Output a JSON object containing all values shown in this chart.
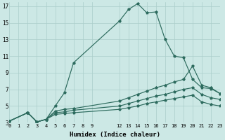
{
  "xlabel": "Humidex (Indice chaleur)",
  "bg_color": "#cce8e5",
  "line_color": "#2d6b5e",
  "grid_color": "#aaceca",
  "xlim": [
    0,
    23
  ],
  "ylim": [
    3,
    17.5
  ],
  "xtick_vals": [
    0,
    1,
    2,
    3,
    4,
    5,
    6,
    7,
    8,
    9,
    12,
    13,
    14,
    15,
    16,
    17,
    18,
    19,
    20,
    21,
    22,
    23
  ],
  "xtick_labels": [
    "0",
    "1",
    "2",
    "3",
    "4",
    "5",
    "6",
    "7",
    "8",
    "9",
    "12",
    "13",
    "14",
    "15",
    "16",
    "17",
    "18",
    "19",
    "20",
    "21",
    "22",
    "23"
  ],
  "ytick_vals": [
    3,
    5,
    7,
    9,
    11,
    13,
    15,
    17
  ],
  "line1_x": [
    0,
    2,
    3,
    4,
    5,
    6,
    7,
    12,
    13,
    14,
    15,
    16,
    17,
    18,
    19,
    20,
    21,
    22,
    23
  ],
  "line1_y": [
    3.2,
    4.2,
    3.1,
    3.4,
    5.0,
    6.6,
    10.2,
    15.2,
    16.6,
    17.3,
    16.2,
    16.3,
    13.0,
    11.0,
    10.8,
    8.2,
    7.2,
    7.1,
    6.5
  ],
  "line2_x": [
    0,
    2,
    3,
    4,
    5,
    6,
    7,
    12,
    13,
    14,
    15,
    16,
    17,
    18,
    19,
    20,
    21,
    22,
    23
  ],
  "line2_y": [
    3.2,
    4.2,
    3.1,
    3.4,
    4.4,
    4.6,
    4.7,
    5.6,
    6.0,
    6.4,
    6.8,
    7.2,
    7.5,
    7.9,
    8.2,
    9.8,
    7.5,
    7.2,
    6.5
  ],
  "line3_x": [
    0,
    2,
    3,
    4,
    5,
    6,
    7,
    12,
    13,
    14,
    15,
    16,
    17,
    18,
    19,
    20,
    21,
    22,
    23
  ],
  "line3_y": [
    3.2,
    4.2,
    3.1,
    3.4,
    4.2,
    4.3,
    4.5,
    5.0,
    5.3,
    5.6,
    5.9,
    6.2,
    6.4,
    6.7,
    7.0,
    7.2,
    6.4,
    6.0,
    5.8
  ],
  "line4_x": [
    0,
    2,
    3,
    4,
    5,
    6,
    7,
    12,
    13,
    14,
    15,
    16,
    17,
    18,
    19,
    20,
    21,
    22,
    23
  ],
  "line4_y": [
    3.2,
    4.2,
    3.1,
    3.4,
    4.0,
    4.1,
    4.2,
    4.6,
    4.8,
    5.0,
    5.3,
    5.5,
    5.7,
    5.9,
    6.1,
    6.3,
    5.5,
    5.2,
    5.0
  ]
}
